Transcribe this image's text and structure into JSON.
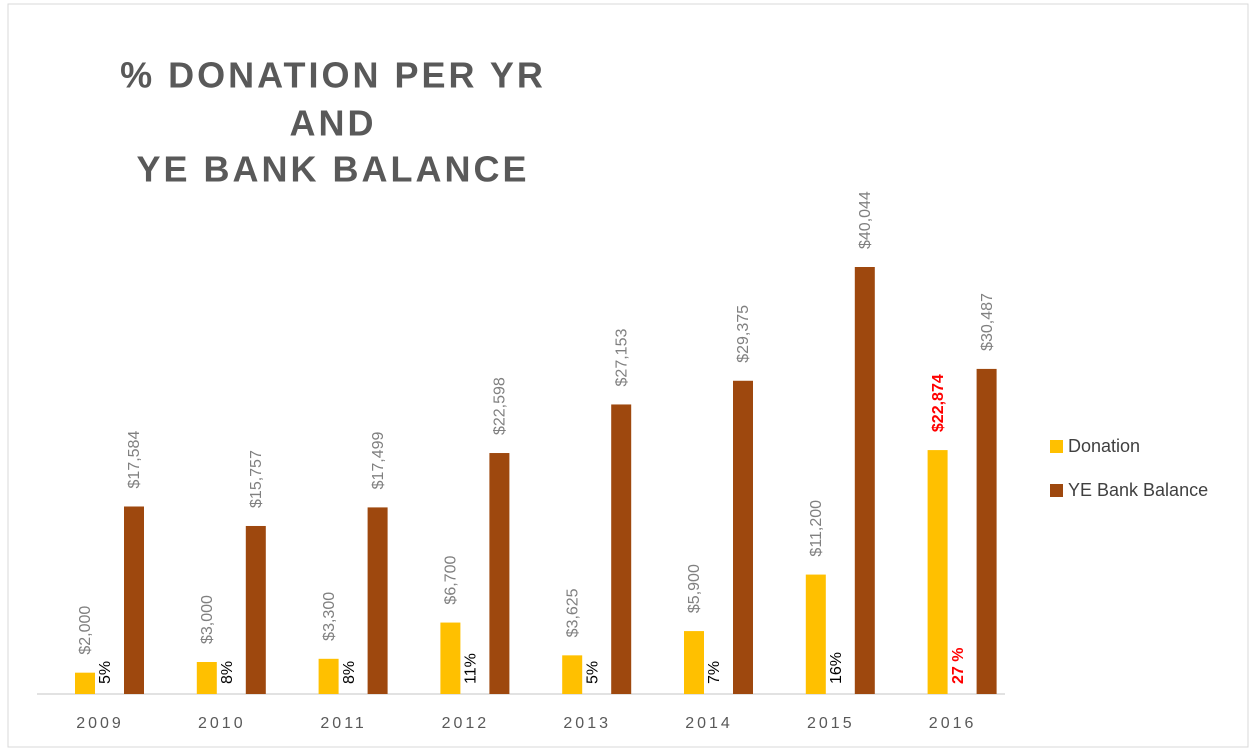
{
  "chart_data": {
    "type": "bar",
    "title": [
      "% DONATION PER YR",
      "AND",
      "YE BANK BALANCE"
    ],
    "categories": [
      "2009",
      "2010",
      "2011",
      "2012",
      "2013",
      "2014",
      "2015",
      "2016"
    ],
    "series": [
      {
        "name": "Donation",
        "color": "#ffc000",
        "values": [
          2000,
          3000,
          3300,
          6700,
          3625,
          5900,
          11200,
          22874
        ],
        "value_labels": [
          "$2,000",
          "$3,000",
          "$3,300",
          "$6,700",
          "$3,625",
          "$5,900",
          "$11,200",
          "$22,874"
        ]
      },
      {
        "name": "YE Bank Balance",
        "color": "#9e480e",
        "values": [
          17584,
          15757,
          17499,
          22598,
          27153,
          29375,
          40044,
          30487
        ],
        "value_labels": [
          "$17,584",
          "$15,757",
          "$17,499",
          "$22,598",
          "$27,153",
          "$29,375",
          "$40,044",
          "$30,487"
        ]
      }
    ],
    "annotations": [
      "5%",
      "8%",
      "8%",
      "11%",
      "5%",
      "7%",
      "16%",
      "27 %"
    ],
    "highlight": {
      "category": "2016",
      "color": "#ff0000"
    },
    "legend": "right"
  }
}
